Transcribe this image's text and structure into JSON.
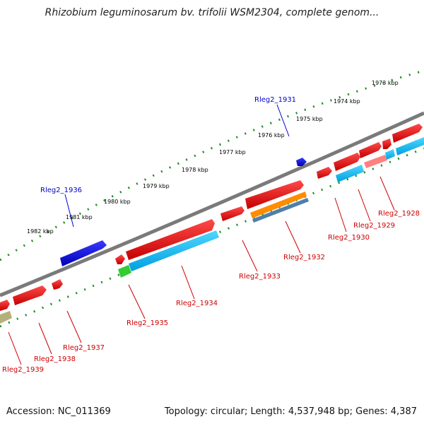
{
  "title": "Rhizobium leguminosarum bv. trifolii WSM2304, complete genom...",
  "footer": {
    "accession": "Accession: NC_011369",
    "summary": "Topology: circular; Length: 4,537,948 bp; Genes: 4,387"
  },
  "colors": {
    "backbone": "#808080",
    "gene_forward": "#ff0000",
    "gene_reverse": "#0000ff",
    "cds": "#00bfff",
    "rna": "#33cc33",
    "other": "#ff8c00",
    "ruler": "#228b22",
    "label_forward": "#0000cc",
    "label_reverse": "#cc0000"
  },
  "ruler_labels": [
    "1973 kbp",
    "1974 kbp",
    "1975 kbp",
    "1976 kbp",
    "1977 kbp",
    "1978 kbp",
    "1979 kbp",
    "1980 kbp",
    "1981 kbp",
    "1982 kbp"
  ],
  "gene_labels": {
    "forward": [
      "Rleg2_1931",
      "Rleg2_1936"
    ],
    "reverse": [
      "Rleg2_1928",
      "Rleg2_1929",
      "Rleg2_1930",
      "Rleg2_1932",
      "Rleg2_1933",
      "Rleg2_1934",
      "Rleg2_1935",
      "Rleg2_1937",
      "Rleg2_1938",
      "Rleg2_1939"
    ]
  }
}
